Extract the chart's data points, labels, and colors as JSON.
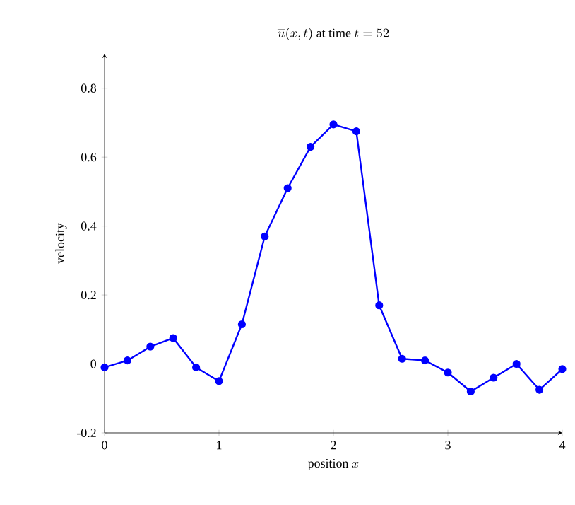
{
  "chart_data": {
    "type": "line",
    "title": "\\overline{u}(x,t)\\mbox{ at time }t=52",
    "xlabel": "\\mbox{position }x",
    "ylabel": "velocity",
    "x": [
      0,
      0.2,
      0.4,
      0.6,
      0.8,
      1.0,
      1.2,
      1.4,
      1.6,
      1.8,
      2.0,
      2.2,
      2.4,
      2.6,
      2.8,
      3.0,
      3.2,
      3.4,
      3.6,
      3.8,
      4.0
    ],
    "series": [
      {
        "color": "#0000ff",
        "values": [
          -0.01,
          0.01,
          0.05,
          0.075,
          -0.01,
          -0.05,
          0.115,
          0.37,
          0.51,
          0.63,
          0.695,
          0.675,
          0.17,
          0.015,
          0.01,
          -0.025,
          -0.08,
          -0.04,
          0,
          -0.075,
          -0.015
        ]
      }
    ],
    "xlim": [
      0,
      4
    ],
    "ylim": [
      -0.2,
      0.9
    ],
    "xticks": [
      0,
      1,
      2,
      3,
      4
    ],
    "yticks": [
      -0.2,
      0,
      0.2,
      0.4,
      0.6,
      0.8
    ],
    "marker": "circle",
    "line_style": "solid"
  }
}
